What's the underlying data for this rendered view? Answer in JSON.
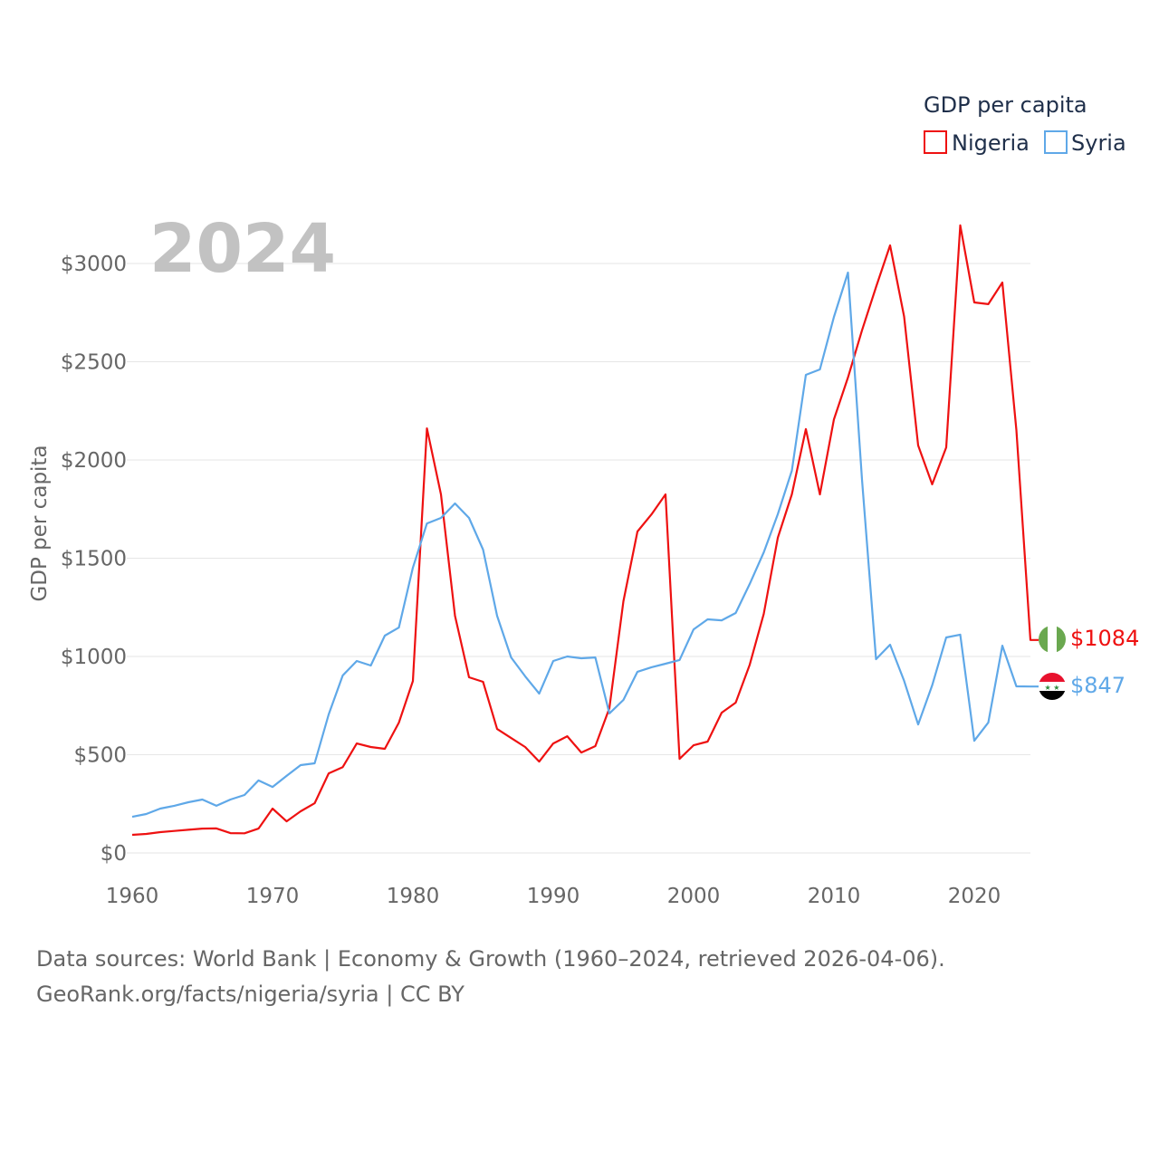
{
  "chart_data": {
    "type": "line",
    "title": "GDP per capita",
    "year_label": "2024",
    "ylabel": "GDP per capita",
    "xlabel": "",
    "xlim": [
      1960,
      2024
    ],
    "ylim": [
      0,
      3000
    ],
    "x_ticks": [
      "1960",
      "1970",
      "1980",
      "1990",
      "2000",
      "2010",
      "2020"
    ],
    "x_tick_values": [
      1960,
      1970,
      1980,
      1990,
      2000,
      2010,
      2020
    ],
    "y_ticks": [
      "$0",
      "$500",
      "$1000",
      "$1500",
      "$2000",
      "$2500",
      "$3000"
    ],
    "y_tick_values": [
      0,
      500,
      1000,
      1500,
      2000,
      2500,
      3000
    ],
    "grid": true,
    "legend_placement": "top-right",
    "x": [
      1960,
      1961,
      1962,
      1963,
      1964,
      1965,
      1966,
      1967,
      1968,
      1969,
      1970,
      1971,
      1972,
      1973,
      1974,
      1975,
      1976,
      1977,
      1978,
      1979,
      1980,
      1981,
      1982,
      1983,
      1984,
      1985,
      1986,
      1987,
      1988,
      1989,
      1990,
      1991,
      1992,
      1993,
      1994,
      1995,
      1996,
      1997,
      1998,
      1999,
      2000,
      2001,
      2002,
      2003,
      2004,
      2005,
      2006,
      2007,
      2008,
      2009,
      2010,
      2011,
      2012,
      2013,
      2014,
      2015,
      2016,
      2017,
      2018,
      2019,
      2020,
      2021,
      2022,
      2023,
      2024
    ],
    "series": [
      {
        "name": "Nigeria",
        "color": "#ee1111",
        "end_label": "$1084",
        "values": [
          92,
          97,
          106,
          112,
          118,
          124,
          125,
          101,
          100,
          124,
          226,
          161,
          212,
          253,
          405,
          437,
          557,
          539,
          530,
          663,
          875,
          2161,
          1825,
          1207,
          894,
          871,
          631,
          585,
          539,
          465,
          557,
          594,
          511,
          544,
          737,
          1281,
          1636,
          1723,
          1825,
          479,
          548,
          567,
          714,
          765,
          958,
          1217,
          1604,
          1825,
          2157,
          1825,
          2207,
          2420,
          2660,
          2880,
          3092,
          2730,
          2074,
          1876,
          2064,
          3194,
          2802,
          2793,
          2903,
          2152,
          1084
        ]
      },
      {
        "name": "Syria",
        "color": "#5fa8e8",
        "end_label": "$847",
        "values": [
          184,
          198,
          226,
          240,
          258,
          272,
          240,
          272,
          295,
          369,
          336,
          392,
          447,
          456,
          705,
          903,
          977,
          954,
          1106,
          1147,
          1452,
          1677,
          1705,
          1779,
          1705,
          1544,
          1207,
          995,
          899,
          811,
          977,
          1000,
          991,
          995,
          710,
          779,
          922,
          945,
          963,
          982,
          1138,
          1189,
          1184,
          1221,
          1369,
          1530,
          1724,
          1945,
          2433,
          2461,
          2728,
          2954,
          1900,
          986,
          1060,
          876,
          654,
          853,
          1097,
          1111,
          571,
          664,
          1055,
          848,
          847
        ]
      }
    ]
  },
  "footer": {
    "line1": "Data sources: World Bank | Economy & Growth (1960–2024, retrieved 2026-04-06).",
    "line2": "GeoRank.org/facts/nigeria/syria | CC BY"
  }
}
